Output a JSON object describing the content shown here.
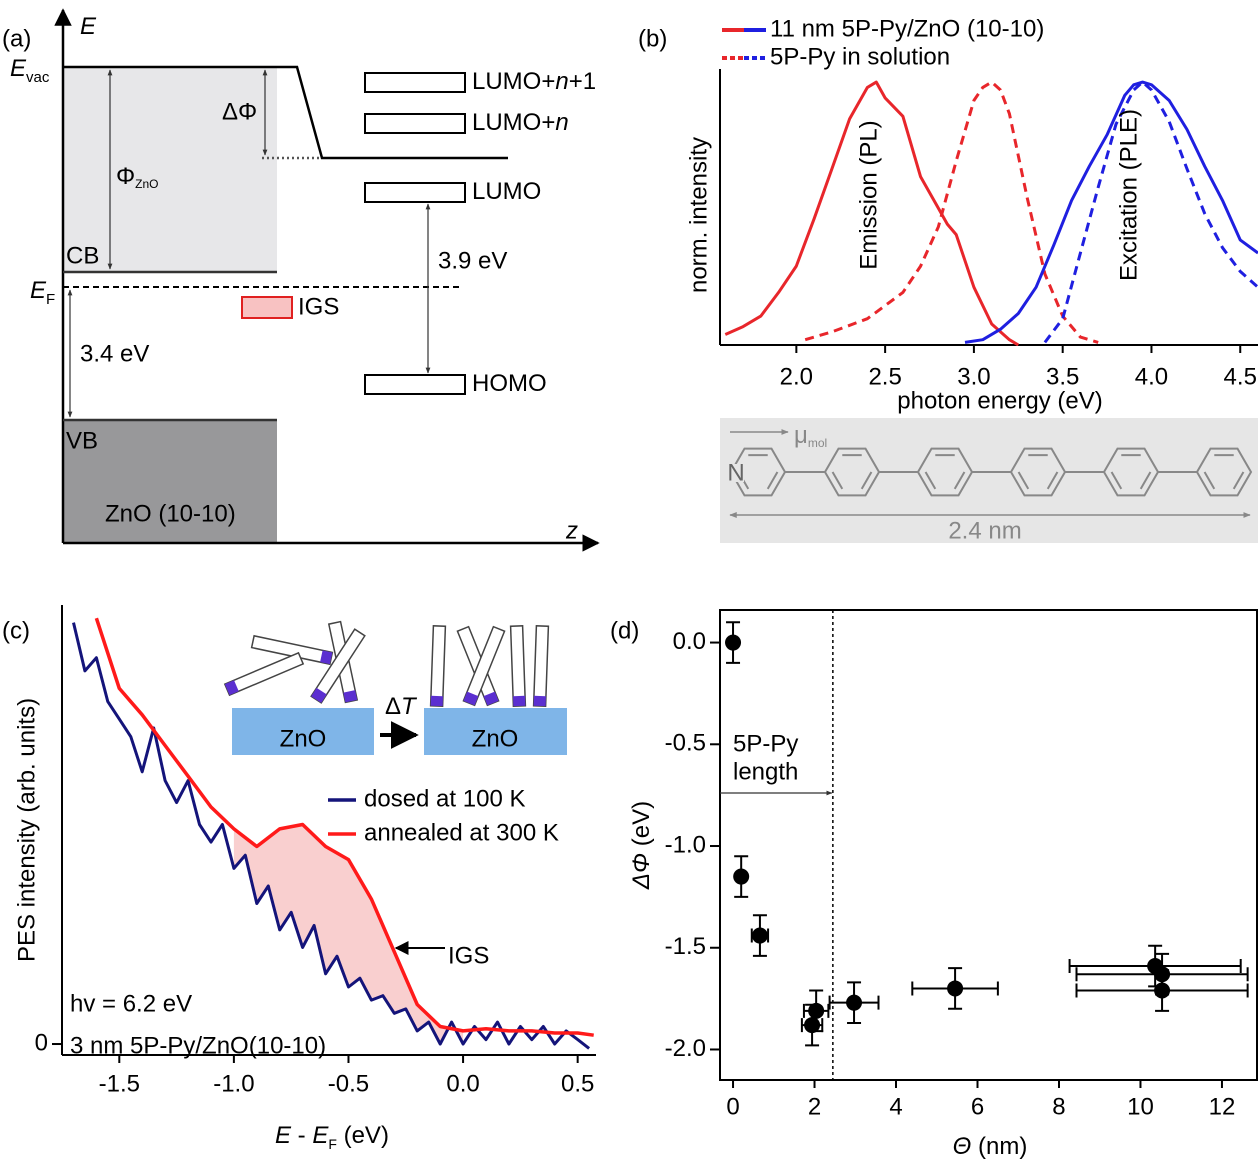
{
  "panel_labels": [
    "(a)",
    "(b)",
    "(c)",
    "(d)"
  ],
  "energy_diagram": {
    "axis_y": "E",
    "axis_x": "z",
    "e_vac": [
      "E",
      "vac"
    ],
    "delta_phi": "ΔΦ",
    "phi_zno": [
      "Φ",
      "ZnO"
    ],
    "cb": "CB",
    "e_f": [
      "E",
      "F"
    ],
    "igs": "IGS",
    "gap_zno": "3.4 eV",
    "vb": "VB",
    "substrate": "ZnO (10-10)",
    "levels": [
      [
        "LUMO+",
        "n",
        "+1"
      ],
      [
        "LUMO+",
        "n"
      ],
      [
        "LUMO"
      ],
      [
        "HOMO"
      ]
    ],
    "gap_molecule": "3.9 eV"
  },
  "molecule": {
    "dipole": [
      "μ",
      "mol"
    ],
    "atom": "N",
    "length": "2.4 nm"
  },
  "chart_data": [
    {
      "type": "line",
      "xlabel": "photon energy (eV)",
      "ylabel": "norm. intensity",
      "xlim": [
        1.57,
        4.6
      ],
      "ylim": [
        0,
        1.05
      ],
      "xticks": [
        {
          "value": 2,
          "label": "2.0"
        },
        2.5,
        {
          "value": 3,
          "label": "3.0"
        },
        3.5,
        {
          "value": 4,
          "label": "4.0"
        },
        4.5
      ],
      "legend": [
        {
          "label": "11 nm 5P-Py/ZnO (10-10)",
          "colors": [
            "#e8262b",
            "#1f1fe0"
          ],
          "dash": false
        },
        {
          "label": "5P-Py in solution",
          "colors": [
            "#e8262b",
            "#1f1fe0"
          ],
          "dash": true
        }
      ],
      "annotations": [
        "Emission (PL)",
        "Excitation (PLE)"
      ],
      "series": [
        {
          "color": "#e8262b",
          "dash": false,
          "x": [
            1.6,
            1.7,
            1.8,
            1.9,
            2.0,
            2.1,
            2.2,
            2.3,
            2.4,
            2.45,
            2.5,
            2.6,
            2.7,
            2.8,
            2.85,
            2.9,
            3.0,
            3.1,
            3.2,
            3.25
          ],
          "values": [
            0.04,
            0.07,
            0.11,
            0.2,
            0.3,
            0.48,
            0.67,
            0.86,
            0.98,
            1.0,
            0.94,
            0.87,
            0.64,
            0.52,
            0.46,
            0.42,
            0.22,
            0.08,
            0.02,
            0.0
          ]
        },
        {
          "color": "#e8262b",
          "dash": true,
          "x": [
            2.05,
            2.2,
            2.4,
            2.6,
            2.7,
            2.8,
            2.9,
            3.0,
            3.05,
            3.1,
            3.15,
            3.2,
            3.3,
            3.4,
            3.5,
            3.6,
            3.7
          ],
          "values": [
            0.02,
            0.05,
            0.1,
            0.2,
            0.3,
            0.45,
            0.7,
            0.93,
            0.98,
            1.0,
            0.97,
            0.88,
            0.56,
            0.27,
            0.11,
            0.03,
            0.01
          ]
        },
        {
          "color": "#1f1fe0",
          "dash": false,
          "x": [
            2.95,
            3.05,
            3.15,
            3.25,
            3.35,
            3.45,
            3.55,
            3.65,
            3.75,
            3.85,
            3.9,
            3.95,
            4.0,
            4.1,
            4.2,
            4.3,
            4.4,
            4.5,
            4.6
          ],
          "values": [
            0.01,
            0.02,
            0.06,
            0.12,
            0.22,
            0.38,
            0.55,
            0.68,
            0.8,
            0.95,
            0.99,
            1.0,
            0.99,
            0.93,
            0.82,
            0.68,
            0.55,
            0.4,
            0.35
          ]
        },
        {
          "color": "#1f1fe0",
          "dash": true,
          "x": [
            3.4,
            3.5,
            3.6,
            3.7,
            3.8,
            3.9,
            3.95,
            4.0,
            4.1,
            4.2,
            4.3,
            4.4,
            4.5,
            4.6
          ],
          "values": [
            0.01,
            0.1,
            0.35,
            0.6,
            0.84,
            0.97,
            1.0,
            0.97,
            0.85,
            0.67,
            0.5,
            0.37,
            0.28,
            0.22
          ]
        }
      ]
    },
    {
      "type": "line",
      "xlabel": [
        "E",
        " - ",
        "E",
        "F",
        " (eV)"
      ],
      "ylabel": "PES intensity (arb. units)",
      "xlim": [
        -1.75,
        0.58
      ],
      "ylim": [
        -0.025,
        1.0
      ],
      "xticks": [
        -1.5,
        {
          "value": -1,
          "label": "-1.0"
        },
        -0.5,
        {
          "value": 0,
          "label": "0.0"
        },
        0.5
      ],
      "yticks": [
        0
      ],
      "shading": {
        "color": "#f9cfcf",
        "x_from": -1.0,
        "x_to": 0.0
      },
      "annotations": {
        "igs": "IGS",
        "photon": "hv = 6.2 eV",
        "sample": "3 nm 5P-Py/ZnO(10-10)"
      },
      "inset": {
        "substrates": [
          "ZnO",
          "ZnO"
        ],
        "heating": [
          "Δ",
          "T"
        ]
      },
      "series": [
        {
          "name": "dosed at 100 K",
          "color": "#14147a",
          "x": [
            -1.7,
            -1.65,
            -1.6,
            -1.55,
            -1.5,
            -1.45,
            -1.4,
            -1.35,
            -1.3,
            -1.25,
            -1.2,
            -1.15,
            -1.1,
            -1.05,
            -1.0,
            -0.95,
            -0.9,
            -0.85,
            -0.8,
            -0.75,
            -0.7,
            -0.65,
            -0.6,
            -0.55,
            -0.5,
            -0.45,
            -0.4,
            -0.35,
            -0.3,
            -0.25,
            -0.2,
            -0.15,
            -0.1,
            -0.05,
            0.0,
            0.05,
            0.1,
            0.15,
            0.2,
            0.25,
            0.3,
            0.35,
            0.4,
            0.45,
            0.5,
            0.55
          ],
          "values": [
            0.96,
            0.85,
            0.88,
            0.78,
            0.74,
            0.7,
            0.62,
            0.72,
            0.6,
            0.55,
            0.6,
            0.5,
            0.46,
            0.5,
            0.4,
            0.43,
            0.32,
            0.36,
            0.26,
            0.3,
            0.22,
            0.27,
            0.16,
            0.2,
            0.13,
            0.15,
            0.1,
            0.11,
            0.07,
            0.08,
            0.03,
            0.05,
            0.0,
            0.05,
            0.0,
            0.04,
            0.01,
            0.05,
            0.0,
            0.04,
            0.01,
            0.04,
            0.0,
            0.03,
            0.01,
            -0.01
          ]
        },
        {
          "name": "annealed at 300 K",
          "color": "#ff1a1a",
          "x": [
            -1.6,
            -1.5,
            -1.4,
            -1.3,
            -1.2,
            -1.1,
            -1.0,
            -0.9,
            -0.8,
            -0.7,
            -0.6,
            -0.5,
            -0.4,
            -0.3,
            -0.2,
            -0.1,
            0.0,
            0.1,
            0.2,
            0.3,
            0.4,
            0.5,
            0.57
          ],
          "values": [
            0.97,
            0.81,
            0.75,
            0.68,
            0.61,
            0.54,
            0.49,
            0.45,
            0.49,
            0.5,
            0.45,
            0.42,
            0.33,
            0.21,
            0.09,
            0.04,
            0.03,
            0.035,
            0.03,
            0.03,
            0.025,
            0.025,
            0.02
          ]
        }
      ]
    },
    {
      "type": "scatter",
      "xlabel": [
        "Θ",
        " (nm)"
      ],
      "ylabel": [
        "ΔΦ",
        " (eV)"
      ],
      "xlim": [
        -0.32,
        12.86
      ],
      "ylim": [
        -2.15,
        0.16
      ],
      "xticks": [
        0,
        2,
        4,
        6,
        8,
        10,
        12
      ],
      "yticks": [
        {
          "value": 0,
          "label": "0.0"
        },
        -0.5,
        {
          "value": -1,
          "label": "-1.0"
        },
        -1.5,
        {
          "value": -2,
          "label": "-2.0"
        }
      ],
      "color": "#000000",
      "x": [
        0,
        0.2,
        0.66,
        1.94,
        2.04,
        2.97,
        5.45,
        10.36,
        10.53,
        10.53
      ],
      "values": [
        0,
        -1.15,
        -1.44,
        -1.88,
        -1.81,
        -1.77,
        -1.7,
        -1.59,
        -1.63,
        -1.71
      ],
      "xerr": [
        0,
        0,
        0.2,
        0.25,
        0.3,
        0.6,
        1.05,
        2.1,
        2.1,
        2.1
      ],
      "yerr": [
        0.1,
        0.1,
        0.1,
        0.1,
        0.1,
        0.1,
        0.1,
        0.1,
        0.1,
        0.1
      ],
      "length_marker": {
        "x": 2.45,
        "label": [
          "5P-Py",
          "length"
        ]
      }
    }
  ]
}
